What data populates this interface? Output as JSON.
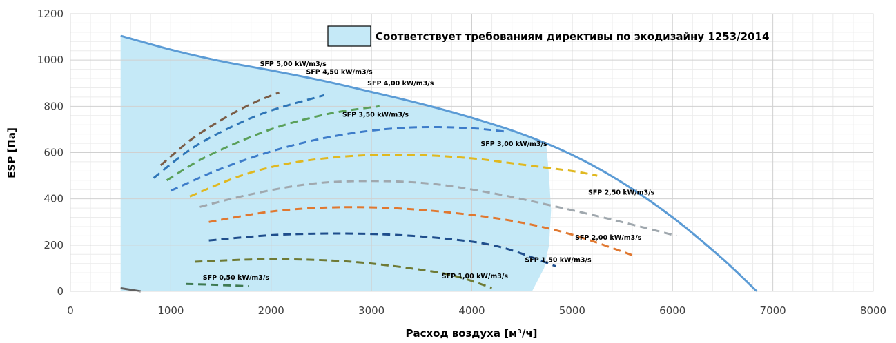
{
  "chart_data": {
    "type": "line",
    "xlabel": "Расход воздуха [м³/ч]",
    "ylabel": "ESP [Па]",
    "xlim": [
      0,
      8000
    ],
    "ylim": [
      0,
      1200
    ],
    "x_ticks": [
      "0",
      "1000",
      "2000",
      "3000",
      "4000",
      "5000",
      "6000",
      "7000",
      "8000"
    ],
    "y_ticks": [
      "0",
      "200",
      "400",
      "600",
      "800",
      "1000",
      "1200"
    ],
    "grid": true,
    "legend": {
      "position": "top-right",
      "entry": "Соответствует требованиям директивы по экодизайну 1253/2014"
    },
    "colors": {
      "fan_curve": "#5b9bd5",
      "compliance_area": "#c5e9f7",
      "grid_major": "#d0d0d0",
      "grid_minor": "#ececec"
    },
    "compliance_area": [
      [
        500,
        1105
      ],
      [
        1000,
        1045
      ],
      [
        1500,
        995
      ],
      [
        2000,
        955
      ],
      [
        2500,
        912
      ],
      [
        3000,
        862
      ],
      [
        3500,
        810
      ],
      [
        4000,
        750
      ],
      [
        4500,
        680
      ],
      [
        4740,
        640
      ],
      [
        4770,
        500
      ],
      [
        4790,
        350
      ],
      [
        4770,
        200
      ],
      [
        4720,
        100
      ],
      [
        4600,
        0
      ],
      [
        500,
        0
      ]
    ],
    "series": [
      {
        "name": "",
        "color": "#5b9bd5",
        "dashed": false,
        "points": [
          [
            500,
            1105
          ],
          [
            1000,
            1045
          ],
          [
            1500,
            995
          ],
          [
            2000,
            955
          ],
          [
            2500,
            912
          ],
          [
            3000,
            862
          ],
          [
            3500,
            810
          ],
          [
            4000,
            750
          ],
          [
            4500,
            680
          ],
          [
            5000,
            590
          ],
          [
            5500,
            470
          ],
          [
            6000,
            320
          ],
          [
            6500,
            140
          ],
          [
            6840,
            0
          ]
        ]
      },
      {
        "name": "SFP 5,00 kW/m3/s",
        "label": "SFP 5,00 kW/m3/s",
        "label_at": [
          2220,
          973
        ],
        "color": "#7a5c46",
        "dashed": true,
        "points": [
          [
            900,
            545
          ],
          [
            1200,
            655
          ],
          [
            1500,
            740
          ],
          [
            1800,
            810
          ],
          [
            2080,
            860
          ]
        ]
      },
      {
        "name": "SFP 4,50 kW/m3/s",
        "label": "SFP 4,50 kW/m3/s",
        "label_at": [
          2680,
          940
        ],
        "color": "#2e75b6",
        "dashed": true,
        "points": [
          [
            830,
            490
          ],
          [
            1200,
            615
          ],
          [
            1600,
            710
          ],
          [
            2000,
            782
          ],
          [
            2530,
            848
          ]
        ]
      },
      {
        "name": "SFP 4,00 kW/m3/s",
        "label": "SFP 4,00 kW/m3/s",
        "label_at": [
          3290,
          890
        ],
        "color": "#5aa05a",
        "dashed": true,
        "points": [
          [
            960,
            480
          ],
          [
            1300,
            570
          ],
          [
            1700,
            650
          ],
          [
            2100,
            715
          ],
          [
            2600,
            770
          ],
          [
            3080,
            800
          ]
        ]
      },
      {
        "name": "SFP 3,50 kW/m3/s",
        "label": "SFP 3,50 kW/m3/s",
        "label_at": [
          3040,
          755
        ],
        "color": "#3d7cc9",
        "dashed": true,
        "points": [
          [
            1000,
            435
          ],
          [
            1500,
            530
          ],
          [
            2000,
            605
          ],
          [
            2500,
            660
          ],
          [
            3000,
            695
          ],
          [
            3500,
            710
          ],
          [
            4000,
            705
          ],
          [
            4350,
            690
          ]
        ]
      },
      {
        "name": "SFP 3,00 kW/m3/s",
        "label": "SFP 3,00 kW/m3/s",
        "label_at": [
          4420,
          628
        ],
        "color": "#e0b820",
        "dashed": true,
        "points": [
          [
            1190,
            410
          ],
          [
            1700,
            500
          ],
          [
            2200,
            555
          ],
          [
            2800,
            585
          ],
          [
            3400,
            590
          ],
          [
            4000,
            575
          ],
          [
            4500,
            548
          ],
          [
            5000,
            520
          ],
          [
            5250,
            500
          ]
        ]
      },
      {
        "name": "SFP 2,50 kW/m3/s",
        "label": "SFP 2,50 kW/m3/s",
        "label_at": [
          5490,
          418
        ],
        "color": "#a0a8ae",
        "dashed": true,
        "points": [
          [
            1290,
            365
          ],
          [
            1800,
            420
          ],
          [
            2400,
            465
          ],
          [
            3000,
            477
          ],
          [
            3600,
            465
          ],
          [
            4200,
            425
          ],
          [
            4800,
            370
          ],
          [
            5400,
            310
          ],
          [
            6040,
            240
          ]
        ]
      },
      {
        "name": "SFP 2,00 kW/m3/s",
        "label": "SFP 2,00 kW/m3/s",
        "label_at": [
          5360,
          223
        ],
        "color": "#e07830",
        "dashed": true,
        "points": [
          [
            1380,
            300
          ],
          [
            2000,
            345
          ],
          [
            2600,
            363
          ],
          [
            3200,
            360
          ],
          [
            3800,
            340
          ],
          [
            4400,
            305
          ],
          [
            5000,
            245
          ],
          [
            5640,
            150
          ]
        ]
      },
      {
        "name": "SFP 1,50 kW/m3/s",
        "label": "SFP 1,50 kW/m3/s",
        "label_at": [
          4860,
          127
        ],
        "color": "#1f4e8c",
        "dashed": true,
        "points": [
          [
            1380,
            220
          ],
          [
            2000,
            243
          ],
          [
            2600,
            250
          ],
          [
            3200,
            245
          ],
          [
            3800,
            225
          ],
          [
            4300,
            190
          ],
          [
            4840,
            108
          ]
        ]
      },
      {
        "name": "SFP 1,00 kW/m3/s",
        "label": "SFP 1,00 kW/m3/s",
        "label_at": [
          4030,
          57
        ],
        "color": "#6e7a35",
        "dashed": true,
        "points": [
          [
            1240,
            128
          ],
          [
            1800,
            138
          ],
          [
            2300,
            138
          ],
          [
            2800,
            128
          ],
          [
            3300,
            105
          ],
          [
            3800,
            70
          ],
          [
            4200,
            15
          ]
        ]
      },
      {
        "name": "SFP 0,50 kW/m3/s",
        "label": "SFP 0,50 kW/m3/s",
        "label_at": [
          1650,
          51
        ],
        "color": "#3f7a52",
        "dashed": true,
        "points": [
          [
            1150,
            32
          ],
          [
            1400,
            29
          ],
          [
            1780,
            22
          ]
        ]
      },
      {
        "name": "",
        "color": "#606060",
        "dashed": false,
        "points": [
          [
            500,
            14
          ],
          [
            700,
            0
          ]
        ]
      }
    ]
  }
}
